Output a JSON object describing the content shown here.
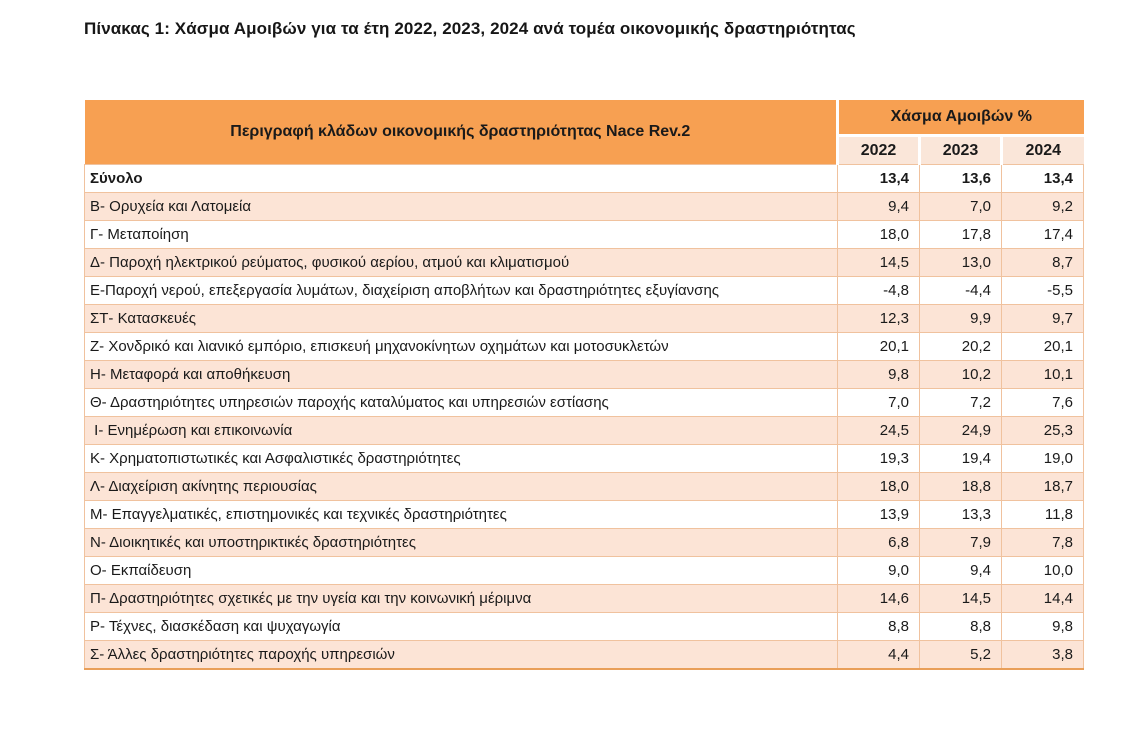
{
  "page_title": "Πίνακας 1: Χάσμα Αμοιβών για τα έτη 2022, 2023, 2024 ανά τομέα οικονομικής δραστηριότητας",
  "table": {
    "description_header": "Περιγραφή κλάδων οικονομικής δραστηριότητας Nace Rev.2",
    "group_header": "Χάσμα Αμοιβών %",
    "years": [
      "2022",
      "2023",
      "2024"
    ],
    "rows": [
      {
        "label": "Σύνολο",
        "values": [
          "13,4",
          "13,6",
          "13,4"
        ],
        "bold": true
      },
      {
        "label": "Β- Ορυχεία και Λατομεία",
        "values": [
          "9,4",
          "7,0",
          "9,2"
        ]
      },
      {
        "label": "Γ- Μεταποίηση",
        "values": [
          "18,0",
          "17,8",
          "17,4"
        ]
      },
      {
        "label": "Δ- Παροχή ηλεκτρικού ρεύματος, φυσικού αερίου, ατμού και κλιματισμού",
        "values": [
          "14,5",
          "13,0",
          "8,7"
        ]
      },
      {
        "label": "Ε-Παροχή νερού, επεξεργασία λυμάτων, διαχείριση αποβλήτων και δραστηριότητες εξυγίανσης",
        "values": [
          "-4,8",
          "-4,4",
          "-5,5"
        ]
      },
      {
        "label": "ΣΤ- Κατασκευές",
        "values": [
          "12,3",
          "9,9",
          "9,7"
        ]
      },
      {
        "label": "Ζ- Χονδρικό και λιανικό εμπόριο, επισκευή μηχανοκίνητων οχημάτων και μοτοσυκλετών",
        "values": [
          "20,1",
          "20,2",
          "20,1"
        ]
      },
      {
        "label": "Η- Μεταφορά και αποθήκευση",
        "values": [
          "9,8",
          "10,2",
          "10,1"
        ]
      },
      {
        "label": "Θ- Δραστηριότητες υπηρεσιών παροχής καταλύματος και υπηρεσιών εστίασης",
        "values": [
          "7,0",
          "7,2",
          "7,6"
        ]
      },
      {
        "label": " Ι- Ενημέρωση και επικοινωνία",
        "values": [
          "24,5",
          "24,9",
          "25,3"
        ]
      },
      {
        "label": "Κ- Χρηματοπιστωτικές και Ασφαλιστικές δραστηριότητες",
        "values": [
          "19,3",
          "19,4",
          "19,0"
        ]
      },
      {
        "label": "Λ- Διαχείριση ακίνητης περιουσίας",
        "values": [
          "18,0",
          "18,8",
          "18,7"
        ]
      },
      {
        "label": "Μ- Επαγγελματικές, επιστημονικές και τεχνικές δραστηριότητες",
        "values": [
          "13,9",
          "13,3",
          "11,8"
        ]
      },
      {
        "label": "Ν- Διοικητικές και υποστηρικτικές δραστηριότητες",
        "values": [
          "6,8",
          "7,9",
          "7,8"
        ]
      },
      {
        "label": "Ο- Εκπαίδευση",
        "values": [
          "9,0",
          "9,4",
          "10,0"
        ]
      },
      {
        "label": "Π- Δραστηριότητες σχετικές με την υγεία και την κοινωνική μέριμνα",
        "values": [
          "14,6",
          "14,5",
          "14,4"
        ]
      },
      {
        "label": "Ρ- Τέχνες, διασκέδαση και ψυχαγωγία",
        "values": [
          "8,8",
          "8,8",
          "9,8"
        ]
      },
      {
        "label": "Σ- Άλλες δραστηριότητες παροχής υπηρεσιών",
        "values": [
          "4,4",
          "5,2",
          "3,8"
        ]
      }
    ]
  },
  "colors": {
    "header_orange": "#F7A052",
    "year_cell_bg": "#FAE6D9",
    "row_peach": "#FCE4D6",
    "row_white": "#FFFFFF",
    "border_light": "#F0C29E",
    "table_bottom_border": "#E99F59",
    "text": "#1A1A1A"
  }
}
